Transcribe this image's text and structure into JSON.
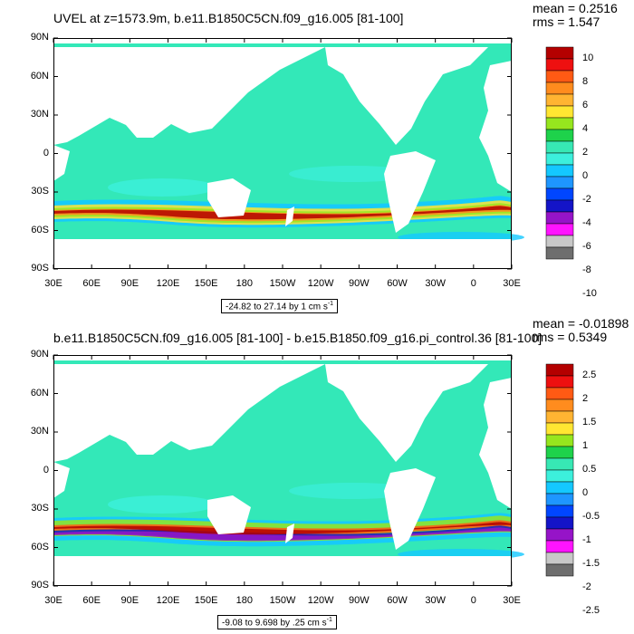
{
  "panels": [
    {
      "title": "UVEL at z=1573.9m, b.e11.B1850C5CN.f09_g16.005 [81-100]",
      "mean_text": "mean = 0.2516",
      "rms_text": "rms = 1.547",
      "range_text": "-24.82 to 27.14 by 1 cm s",
      "range_sup": "-1",
      "colorbar_labels": [
        "10",
        "8",
        "6",
        "4",
        "2",
        "0",
        "-2",
        "-4",
        "-6",
        "-8",
        "-10"
      ]
    },
    {
      "title": "b.e11.B1850C5CN.f09_g16.005 [81-100] - b.e15.B1850.f09_g16.pi_control.36 [81-100]",
      "mean_text": "mean = -0.01898",
      "rms_text": "rms = 0.5349",
      "range_text": "-9.08 to 9.698 by .25 cm s",
      "range_sup": "-1",
      "colorbar_labels": [
        "2.5",
        "2",
        "1.5",
        "1",
        "0.5",
        "0",
        "-0.5",
        "-1",
        "-1.5",
        "-2",
        "-2.5"
      ]
    }
  ],
  "lat_labels": [
    "90N",
    "60N",
    "30N",
    "0",
    "30S",
    "60S",
    "90S"
  ],
  "lon_labels": [
    "30E",
    "60E",
    "90E",
    "120E",
    "150E",
    "180",
    "150W",
    "120W",
    "90W",
    "60W",
    "30W",
    "0",
    "30E"
  ],
  "colors": {
    "ocean_base": "#33e8b8",
    "land": "#ffffff",
    "colorbar": [
      "#b40000",
      "#ee1010",
      "#ff5a14",
      "#ff8c1e",
      "#ffb432",
      "#ffe632",
      "#96e61e",
      "#1ed24b",
      "#37e8b4",
      "#3cf0dc",
      "#14c8ff",
      "#1e96ff",
      "#0046ff",
      "#1414c8",
      "#9614c8",
      "#ff14ff",
      "#c8c8c8",
      "#6e6e6e"
    ]
  },
  "chart_data": {
    "type": "heatmap",
    "panels": [
      {
        "title": "UVEL at z=1573.9m, b.e11.B1850C5CN.f09_g16.005 [81-100]",
        "mean": 0.2516,
        "rms": 1.547,
        "min": -24.82,
        "max": 27.14,
        "interval": 1,
        "units": "cm s-1",
        "colorbar_ticks": [
          10,
          8,
          6,
          4,
          2,
          0,
          -2,
          -4,
          -6,
          -8,
          -10
        ]
      },
      {
        "title": "b.e11.B1850C5CN.f09_g16.005 [81-100] - b.e15.B1850.f09_g16.pi_control.36 [81-100]",
        "mean": -0.01898,
        "rms": 0.5349,
        "min": -9.08,
        "max": 9.698,
        "interval": 0.25,
        "units": "cm s-1",
        "colorbar_ticks": [
          2.5,
          2,
          1.5,
          1,
          0.5,
          0,
          -0.5,
          -1,
          -1.5,
          -2,
          -2.5
        ]
      }
    ],
    "x_ticks": [
      "30E",
      "60E",
      "90E",
      "120E",
      "150E",
      "180",
      "150W",
      "120W",
      "90W",
      "60W",
      "30W",
      "0",
      "30E"
    ],
    "y_ticks": [
      "90N",
      "60N",
      "30N",
      "0",
      "30S",
      "60S",
      "90S"
    ]
  }
}
